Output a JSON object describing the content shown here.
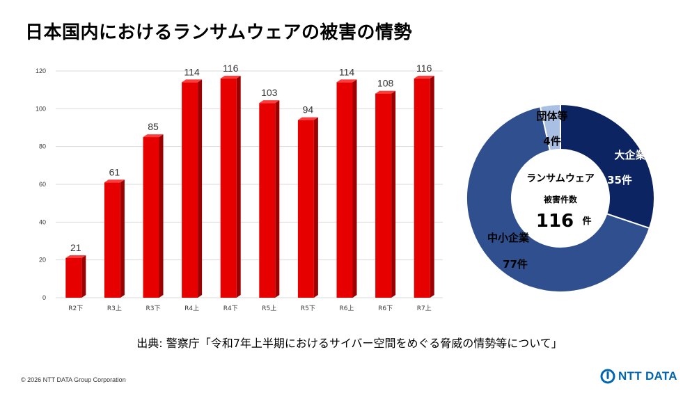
{
  "title": "日本国内におけるランサムウェアの被害の情勢",
  "source": "出典: 警察庁「令和7年上半期におけるサイバー空間をめぐる脅威の情勢等について」",
  "footer": {
    "copyright": "© 2026 NTT DATA Group Corporation",
    "logo_text": "NTT DATA"
  },
  "colors": {
    "bar": "#e60000",
    "bar_side": "#9c0000",
    "bar_top": "#ff3b3b",
    "large": "#0c2461",
    "sme": "#2f4f8f",
    "org": "#a9bfe3",
    "logo": "#0066b3"
  },
  "chart_data": [
    {
      "type": "bar",
      "categories": [
        "R2下",
        "R3上",
        "R3下",
        "R4上",
        "R4下",
        "R5上",
        "R5下",
        "R6上",
        "R6下",
        "R7上"
      ],
      "values": [
        21,
        61,
        85,
        114,
        116,
        103,
        94,
        114,
        108,
        116
      ],
      "ylim": [
        0,
        120
      ],
      "yticks": [
        0,
        20,
        40,
        60,
        80,
        100,
        120
      ],
      "grid": true
    },
    {
      "type": "pie",
      "center_label": "ランサムウェア",
      "center_sublabel": "被害件数",
      "total": 116,
      "total_unit": "件",
      "slices": [
        {
          "name": "大企業",
          "value": 35,
          "label": "35件"
        },
        {
          "name": "中小企業",
          "value": 77,
          "label": "77件"
        },
        {
          "name": "団体等",
          "value": 4,
          "label": "4件"
        }
      ]
    }
  ]
}
